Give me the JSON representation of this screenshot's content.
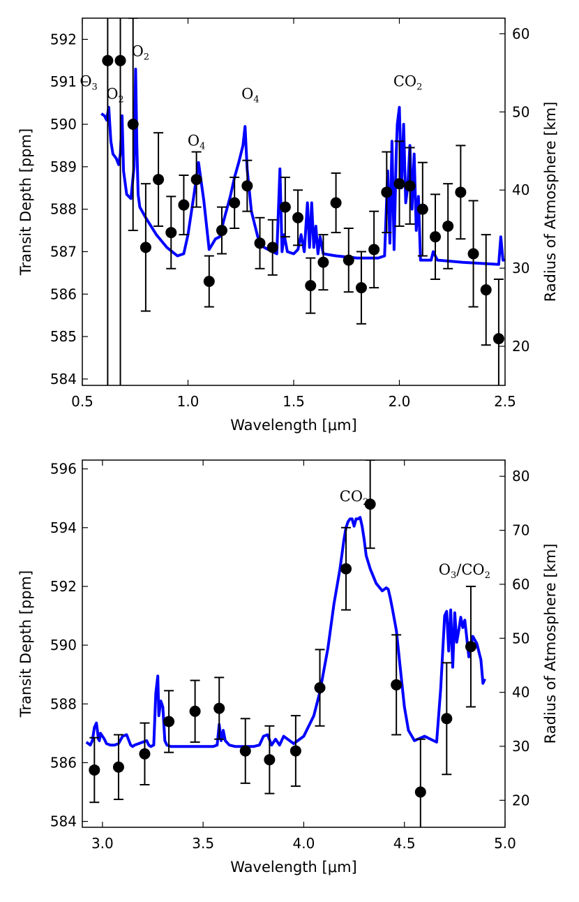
{
  "colors": {
    "model": "#0000ff",
    "data": "#000000",
    "axes": "#000000"
  },
  "chart_data": [
    {
      "type": "line",
      "name": "optical-nir",
      "xlabel": "Wavelength [μm]",
      "ylabel": "Transit Depth [ppm]",
      "ylabel_right": "Radius of Atmosphere [km]",
      "xlim": [
        0.5,
        2.5
      ],
      "ylim": [
        583.85,
        592.5
      ],
      "ylim_right": [
        15.0,
        62.0
      ],
      "xticks": [
        0.5,
        1.0,
        1.5,
        2.0,
        2.5
      ],
      "xtick_labels": [
        "0.5",
        "1.0",
        "1.5",
        "2.0",
        "2.5"
      ],
      "yticks": [
        584,
        585,
        586,
        587,
        588,
        589,
        590,
        591,
        592
      ],
      "ytick_labels": [
        "584",
        "585",
        "586",
        "587",
        "588",
        "589",
        "590",
        "591",
        "592"
      ],
      "yticks_right": [
        20,
        30,
        40,
        50,
        60
      ],
      "ytick_right_labels": [
        "20",
        "30",
        "40",
        "50",
        "60"
      ],
      "annotations": [
        {
          "base": "O",
          "sub": "3",
          "x": 0.53,
          "y": 590.9,
          "anchor": "middle"
        },
        {
          "base": "O",
          "sub": "2",
          "x": 0.655,
          "y": 590.6,
          "anchor": "middle"
        },
        {
          "base": "O",
          "sub": "2",
          "x": 0.775,
          "y": 591.6,
          "anchor": "middle"
        },
        {
          "base": "O",
          "sub": "4",
          "x": 1.04,
          "y": 589.5,
          "anchor": "middle"
        },
        {
          "base": "O",
          "sub": "4",
          "x": 1.295,
          "y": 590.6,
          "anchor": "middle"
        },
        {
          "base": "CO",
          "sub": "2",
          "x": 2.04,
          "y": 590.9,
          "anchor": "middle"
        }
      ],
      "points": {
        "x": [
          0.62,
          0.68,
          0.74,
          0.8,
          0.86,
          0.92,
          0.98,
          1.04,
          1.1,
          1.16,
          1.22,
          1.28,
          1.34,
          1.4,
          1.46,
          1.52,
          1.58,
          1.64,
          1.7,
          1.76,
          1.82,
          1.88,
          1.94,
          2.0,
          2.05,
          2.11,
          2.17,
          2.23,
          2.29,
          2.35,
          2.41,
          2.47
        ],
        "y": [
          591.5,
          591.5,
          590.0,
          587.1,
          588.7,
          587.45,
          588.1,
          588.7,
          586.3,
          587.5,
          588.15,
          588.55,
          587.2,
          587.1,
          588.05,
          587.8,
          586.2,
          586.75,
          588.15,
          586.8,
          586.15,
          587.05,
          588.4,
          588.6,
          588.55,
          588.0,
          587.35,
          587.6,
          588.4,
          586.95,
          586.1,
          584.95
        ],
        "yerr": [
          8.0,
          8.0,
          2.5,
          1.5,
          1.1,
          0.85,
          0.7,
          0.65,
          0.6,
          0.55,
          0.6,
          0.6,
          0.6,
          0.65,
          0.7,
          0.65,
          0.65,
          0.65,
          0.7,
          0.75,
          0.85,
          0.9,
          0.95,
          1.0,
          0.9,
          1.1,
          1.0,
          1.0,
          1.1,
          1.25,
          1.3,
          1.4
        ]
      },
      "model": {
        "x": [
          0.59,
          0.605,
          0.615,
          0.625,
          0.635,
          0.645,
          0.66,
          0.672,
          0.68,
          0.688,
          0.695,
          0.71,
          0.73,
          0.745,
          0.752,
          0.758,
          0.764,
          0.772,
          0.8,
          0.85,
          0.9,
          0.95,
          0.98,
          1.0,
          1.03,
          1.05,
          1.075,
          1.1,
          1.13,
          1.15,
          1.17,
          1.2,
          1.22,
          1.24,
          1.26,
          1.27,
          1.28,
          1.3,
          1.33,
          1.36,
          1.4,
          1.42,
          1.435,
          1.445,
          1.455,
          1.47,
          1.5,
          1.52,
          1.535,
          1.55,
          1.565,
          1.575,
          1.585,
          1.595,
          1.605,
          1.615,
          1.625,
          1.64,
          1.7,
          1.8,
          1.9,
          1.93,
          1.945,
          1.955,
          1.965,
          1.975,
          1.985,
          1.99,
          2.0,
          2.01,
          2.02,
          2.03,
          2.04,
          2.05,
          2.06,
          2.07,
          2.08,
          2.09,
          2.1,
          2.15,
          2.16,
          2.18,
          2.3,
          2.4,
          2.47,
          2.48,
          2.49,
          2.5
        ],
        "y": [
          590.25,
          590.2,
          590.1,
          590.4,
          589.6,
          589.3,
          589.2,
          589.05,
          589.3,
          590.2,
          588.9,
          588.35,
          588.25,
          589.0,
          591.3,
          589.5,
          588.35,
          588.05,
          587.8,
          587.4,
          587.1,
          586.9,
          586.95,
          587.4,
          588.4,
          589.1,
          588.2,
          587.05,
          587.3,
          587.35,
          587.75,
          588.3,
          588.75,
          589.1,
          589.5,
          589.95,
          588.95,
          587.95,
          587.35,
          587.1,
          587.0,
          586.95,
          588.95,
          587.0,
          587.4,
          587.0,
          586.95,
          587.05,
          587.4,
          587.0,
          588.15,
          587.1,
          588.15,
          587.1,
          587.6,
          586.95,
          587.35,
          586.95,
          586.9,
          586.85,
          586.85,
          586.9,
          588.9,
          587.2,
          589.6,
          587.05,
          589.3,
          590.0,
          590.4,
          588.5,
          590.0,
          588.15,
          588.55,
          589.5,
          588.0,
          589.3,
          587.5,
          588.3,
          586.8,
          586.8,
          587.0,
          586.8,
          586.75,
          586.72,
          586.7,
          587.35,
          586.8,
          586.8
        ]
      }
    },
    {
      "type": "line",
      "name": "infrared",
      "xlabel": "Wavelength [μm]",
      "ylabel": "Transit Depth [ppm]",
      "ylabel_right": "Radius of Atmosphere [km]",
      "xlim": [
        2.9,
        5.0
      ],
      "ylim": [
        583.8,
        596.3
      ],
      "ylim_right": [
        15.0,
        83.0
      ],
      "xticks": [
        3.0,
        3.5,
        4.0,
        4.5,
        5.0
      ],
      "xtick_labels": [
        "3.0",
        "3.5",
        "4.0",
        "4.5",
        "5.0"
      ],
      "yticks": [
        584,
        586,
        588,
        590,
        592,
        594,
        596
      ],
      "ytick_labels": [
        "584",
        "586",
        "588",
        "590",
        "592",
        "594",
        "596"
      ],
      "yticks_right": [
        20,
        30,
        40,
        50,
        60,
        70,
        80
      ],
      "ytick_right_labels": [
        "20",
        "30",
        "40",
        "50",
        "60",
        "70",
        "80"
      ],
      "annotations": [
        {
          "base": "CO",
          "sub": "2",
          "x": 4.25,
          "y": 594.9,
          "anchor": "middle"
        },
        {
          "base": "O",
          "sub": "3",
          "x": 4.67,
          "y": 592.4,
          "anchor": "start",
          "tail": "/CO",
          "tail_sub": "2"
        }
      ],
      "points": {
        "x": [
          2.96,
          3.08,
          3.21,
          3.33,
          3.46,
          3.58,
          3.71,
          3.83,
          3.96,
          4.08,
          4.21,
          4.33,
          4.46,
          4.58,
          4.71,
          4.83
        ],
        "y": [
          585.75,
          585.85,
          586.3,
          587.4,
          587.75,
          587.85,
          586.4,
          586.1,
          586.4,
          588.55,
          592.6,
          594.8,
          588.65,
          585.0,
          587.5,
          589.95
        ],
        "yerr": [
          1.1,
          1.1,
          1.05,
          1.05,
          1.05,
          1.05,
          1.1,
          1.15,
          1.2,
          1.3,
          1.4,
          1.5,
          1.7,
          1.8,
          1.9,
          2.05
        ]
      },
      "model": {
        "x": [
          2.92,
          2.94,
          2.95,
          2.96,
          2.97,
          2.975,
          2.98,
          2.985,
          2.99,
          3.0,
          3.01,
          3.02,
          3.04,
          3.06,
          3.08,
          3.1,
          3.12,
          3.14,
          3.15,
          3.16,
          3.2,
          3.22,
          3.23,
          3.24,
          3.255,
          3.265,
          3.275,
          3.28,
          3.29,
          3.3,
          3.31,
          3.32,
          3.34,
          3.37,
          3.4,
          3.45,
          3.5,
          3.55,
          3.57,
          3.58,
          3.59,
          3.6,
          3.61,
          3.63,
          3.66,
          3.7,
          3.75,
          3.78,
          3.8,
          3.82,
          3.84,
          3.86,
          3.88,
          3.9,
          3.95,
          4.0,
          4.05,
          4.08,
          4.12,
          4.15,
          4.18,
          4.2,
          4.21,
          4.22,
          4.23,
          4.24,
          4.25,
          4.26,
          4.27,
          4.28,
          4.29,
          4.3,
          4.31,
          4.33,
          4.36,
          4.39,
          4.41,
          4.42,
          4.43,
          4.44,
          4.46,
          4.48,
          4.5,
          4.52,
          4.55,
          4.6,
          4.63,
          4.66,
          4.68,
          4.7,
          4.71,
          4.72,
          4.73,
          4.74,
          4.75,
          4.76,
          4.77,
          4.78,
          4.79,
          4.8,
          4.82,
          4.84,
          4.86,
          4.88,
          4.89,
          4.9
        ],
        "y": [
          586.7,
          586.6,
          586.75,
          587.2,
          587.35,
          587.1,
          586.8,
          586.75,
          587.0,
          586.9,
          586.8,
          586.65,
          586.6,
          586.6,
          586.65,
          586.9,
          586.95,
          586.6,
          586.55,
          586.6,
          586.7,
          586.75,
          586.6,
          586.55,
          586.6,
          588.35,
          588.95,
          587.6,
          588.1,
          587.9,
          586.75,
          586.6,
          586.55,
          586.55,
          586.55,
          586.55,
          586.55,
          586.55,
          586.6,
          587.3,
          586.75,
          587.1,
          586.75,
          586.6,
          586.55,
          586.55,
          586.55,
          586.6,
          586.9,
          586.95,
          586.6,
          586.8,
          586.6,
          586.9,
          586.65,
          586.9,
          587.6,
          588.4,
          589.9,
          591.4,
          592.6,
          593.6,
          594.0,
          594.2,
          594.3,
          594.3,
          594.05,
          594.3,
          594.3,
          594.35,
          594.05,
          593.6,
          593.05,
          592.6,
          592.1,
          591.85,
          591.95,
          591.9,
          591.6,
          591.25,
          590.5,
          589.2,
          587.9,
          587.1,
          586.75,
          586.9,
          586.8,
          586.7,
          588.5,
          591.0,
          591.15,
          589.8,
          591.2,
          589.25,
          591.1,
          590.1,
          590.5,
          590.95,
          590.6,
          590.85,
          589.6,
          590.3,
          590.05,
          589.5,
          588.7,
          588.85
        ]
      }
    }
  ]
}
